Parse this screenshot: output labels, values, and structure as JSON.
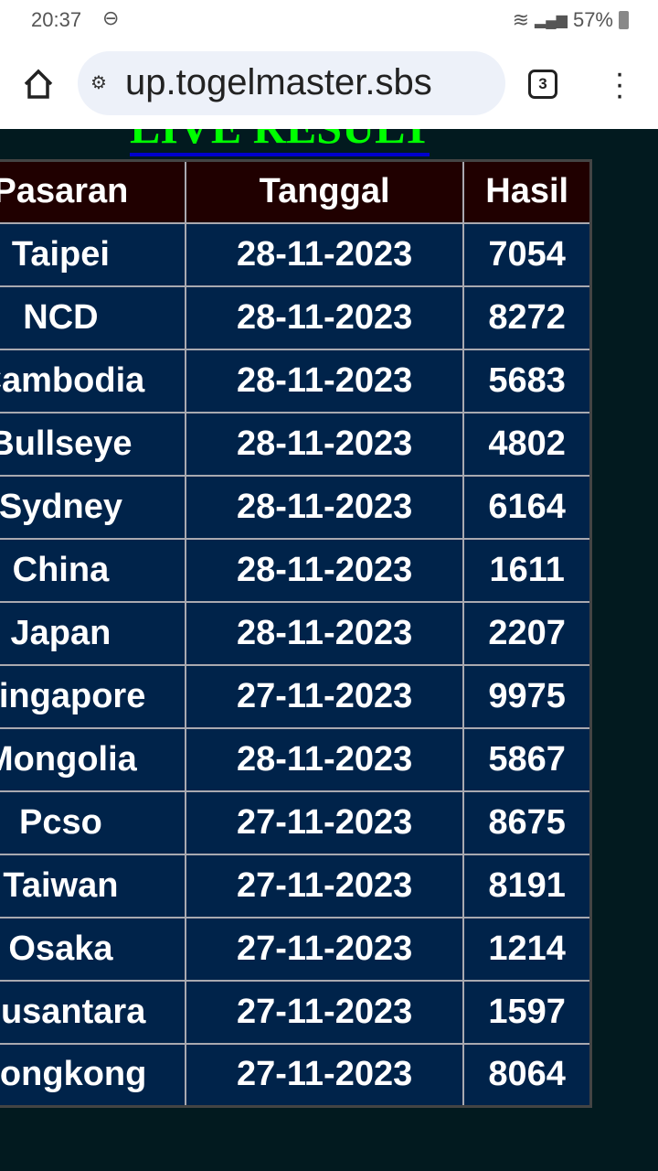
{
  "status_bar": {
    "time": "20:37",
    "battery": "57%"
  },
  "browser": {
    "url": "up.togelmaster.sbs",
    "tab_count": "3"
  },
  "page": {
    "title": "LIVE RESULT"
  },
  "table": {
    "headers": [
      "Pasaran",
      "Tanggal",
      "Hasil"
    ],
    "rows": [
      [
        "Taipei",
        "28-11-2023",
        "7054"
      ],
      [
        "NCD",
        "28-11-2023",
        "8272"
      ],
      [
        "Cambodia",
        "28-11-2023",
        "5683"
      ],
      [
        "Bullseye",
        "28-11-2023",
        "4802"
      ],
      [
        "Sydney",
        "28-11-2023",
        "6164"
      ],
      [
        "China",
        "28-11-2023",
        "1611"
      ],
      [
        "Japan",
        "28-11-2023",
        "2207"
      ],
      [
        "Singapore",
        "27-11-2023",
        "9975"
      ],
      [
        "Mongolia",
        "28-11-2023",
        "5867"
      ],
      [
        "Pcso",
        "27-11-2023",
        "8675"
      ],
      [
        "Taiwan",
        "27-11-2023",
        "8191"
      ],
      [
        "Osaka",
        "27-11-2023",
        "1214"
      ],
      [
        "Nusantara",
        "27-11-2023",
        "1597"
      ],
      [
        "Hongkong",
        "27-11-2023",
        "8064"
      ]
    ]
  }
}
